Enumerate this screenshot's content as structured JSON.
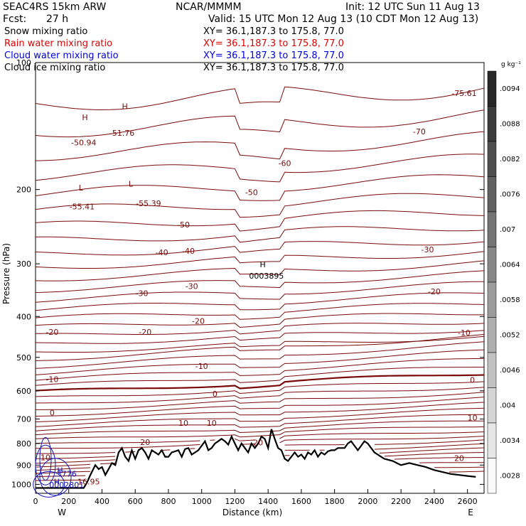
{
  "header": {
    "model": "SEAC4RS 15km ARW",
    "center": "NCAR/MMMM",
    "init": "Init: 12 UTC Sun 11 Aug 13",
    "fcst": "Fcst:",
    "fcst_value": "27 h",
    "valid": "Valid: 15 UTC Mon 12 Aug 13 (10 CDT Mon 12 Aug 13)"
  },
  "fields": [
    {
      "label": "Snow mixing ratio",
      "xy": "XY=  36.1,187.3 to 175.8, 77.0",
      "color": "#000000"
    },
    {
      "label": "Rain water mixing ratio",
      "xy": "XY=  36.1,187.3 to 175.8, 77.0",
      "color": "#e00000"
    },
    {
      "label": "Cloud water mixing ratio",
      "xy": "XY=  36.1,187.3 to 175.8, 77.0",
      "color": "#0000e0"
    },
    {
      "label": "Cloud ice mixing ratio",
      "xy": "XY=  36.1,187.3 to 175.8, 77.0",
      "color": "#000000"
    }
  ],
  "colors": {
    "isotherm": "#7a0a0a",
    "cloud_water": "#1010c0",
    "terrain": "#000000"
  },
  "chart_data": {
    "type": "line",
    "xlabel": "Distance (km)",
    "ylabel": "Pressure (hPa)",
    "xlim": [
      0,
      2700
    ],
    "ylim": [
      1050,
      100
    ],
    "x_ticks": [
      0,
      200,
      400,
      600,
      800,
      1000,
      1200,
      1400,
      1600,
      1800,
      2000,
      2200,
      2400,
      2600
    ],
    "y_ticks": [
      100,
      200,
      300,
      400,
      500,
      600,
      700,
      800,
      900,
      1000
    ],
    "direction_left": "W",
    "direction_right": "E",
    "grid": false,
    "terrain_pressure": {
      "x": [
        0,
        290,
        310,
        330,
        360,
        380,
        400,
        420,
        440,
        460,
        480,
        500,
        520,
        540,
        560,
        580,
        600,
        620,
        640,
        660,
        680,
        700,
        720,
        740,
        760,
        780,
        800,
        820,
        840,
        860,
        880,
        900,
        920,
        940,
        960,
        980,
        1000,
        1020,
        1040,
        1060,
        1080,
        1100,
        1120,
        1140,
        1160,
        1180,
        1200,
        1220,
        1240,
        1260,
        1280,
        1300,
        1320,
        1340,
        1360,
        1380,
        1400,
        1420,
        1440,
        1460,
        1480,
        1500,
        1520,
        1540,
        1560,
        1580,
        1600,
        1620,
        1640,
        1660,
        1680,
        1700,
        1720,
        1740,
        1760,
        1780,
        1800,
        1820,
        1840,
        1860,
        1880,
        1900,
        1920,
        1940,
        1960,
        1980,
        2000,
        2020,
        2040,
        2060,
        2080,
        2100,
        2150,
        2200,
        2250,
        2300,
        2350,
        2400,
        2450,
        2500,
        2550,
        2600,
        2650,
        2700
      ],
      "p": [
        1020,
        1020,
        990,
        950,
        900,
        920,
        910,
        950,
        920,
        890,
        900,
        840,
        820,
        860,
        880,
        830,
        870,
        830,
        820,
        840,
        870,
        830,
        840,
        850,
        830,
        860,
        860,
        840,
        835,
        830,
        860,
        825,
        820,
        850,
        840,
        830,
        810,
        790,
        830,
        820,
        800,
        790,
        780,
        790,
        805,
        770,
        800,
        830,
        800,
        820,
        840,
        800,
        820,
        800,
        770,
        780,
        820,
        740,
        780,
        820,
        830,
        870,
        880,
        860,
        840,
        860,
        850,
        870,
        840,
        850,
        830,
        860,
        840,
        850,
        835,
        830,
        830,
        820,
        820,
        820,
        800,
        790,
        810,
        830,
        810,
        790,
        800,
        820,
        840,
        850,
        860,
        870,
        880,
        900,
        890,
        900,
        910,
        925,
        935,
        945,
        950,
        955,
        960
      ]
    },
    "isotherm_labels": [
      {
        "text": "-70",
        "x": 2310,
        "p": 148
      },
      {
        "text": "-60",
        "x": 1500,
        "p": 176
      },
      {
        "text": "-50",
        "x": 1300,
        "p": 206
      },
      {
        "text": "-50",
        "x": 890,
        "p": 246
      },
      {
        "text": "-40",
        "x": 760,
        "p": 286
      },
      {
        "text": "-40",
        "x": 920,
        "p": 284
      },
      {
        "text": "-30",
        "x": 640,
        "p": 358
      },
      {
        "text": "-30",
        "x": 940,
        "p": 344
      },
      {
        "text": "-30",
        "x": 2360,
        "p": 282
      },
      {
        "text": "-20",
        "x": 100,
        "p": 442
      },
      {
        "text": "-20",
        "x": 660,
        "p": 442
      },
      {
        "text": "-20",
        "x": 980,
        "p": 416
      },
      {
        "text": "-20",
        "x": 2400,
        "p": 354
      },
      {
        "text": "-10",
        "x": 100,
        "p": 572
      },
      {
        "text": "-10",
        "x": 1000,
        "p": 532
      },
      {
        "text": "-10",
        "x": 2580,
        "p": 444
      },
      {
        "text": "0",
        "x": 100,
        "p": 686
      },
      {
        "text": "0",
        "x": 1080,
        "p": 620
      },
      {
        "text": "0",
        "x": 2630,
        "p": 574
      },
      {
        "text": "10",
        "x": 60,
        "p": 876
      },
      {
        "text": "10",
        "x": 890,
        "p": 726
      },
      {
        "text": "10",
        "x": 1060,
        "p": 726
      },
      {
        "text": "10",
        "x": 2630,
        "p": 706
      },
      {
        "text": "20",
        "x": 660,
        "p": 806
      },
      {
        "text": "20",
        "x": 1340,
        "p": 808
      },
      {
        "text": "20",
        "x": 2550,
        "p": 880
      }
    ],
    "extrema": [
      {
        "mark": "H",
        "value": "-50.94",
        "x": 290,
        "x0": 280,
        "p0": 137,
        "p": 157
      },
      {
        "mark": "H",
        "value": "-51.76",
        "x": 520,
        "x0": 520,
        "p0": 129,
        "p": 149
      },
      {
        "mark": "L",
        "value": "-55.41",
        "x": 280,
        "x0": 260,
        "p0": 201,
        "p": 223
      },
      {
        "mark": "L",
        "value": "-55.39",
        "x": 680,
        "x0": 560,
        "p0": 197,
        "p": 219
      },
      {
        "mark": "H",
        "value": "0003895",
        "x": 1390,
        "x0": 1350,
        "p0": 306,
        "p": 325
      },
      {
        "mark": "",
        "value": "-75.61",
        "x": 2580,
        "x0": 2580,
        "p0": 120,
        "p": 120
      },
      {
        "mark": "H",
        "value": ".3776",
        "x": 180,
        "x0": 130,
        "p0": 940,
        "p": 958
      },
      {
        "mark": "H",
        "value": ".0002801",
        "x": 180,
        "x0": 110,
        "p0": 1000,
        "p": 1018
      },
      {
        "mark": "",
        "value": "16.95",
        "x": 320,
        "x0": 320,
        "p0": 1000,
        "p": 1000
      }
    ],
    "colorbar": {
      "unit": "g kg⁻¹",
      "ticks": [
        ".0094",
        ".0088",
        ".0082",
        ".0076",
        ".007",
        ".0064",
        ".0058",
        ".0052",
        ".0046",
        ".004",
        ".0034",
        ".0028"
      ]
    }
  }
}
